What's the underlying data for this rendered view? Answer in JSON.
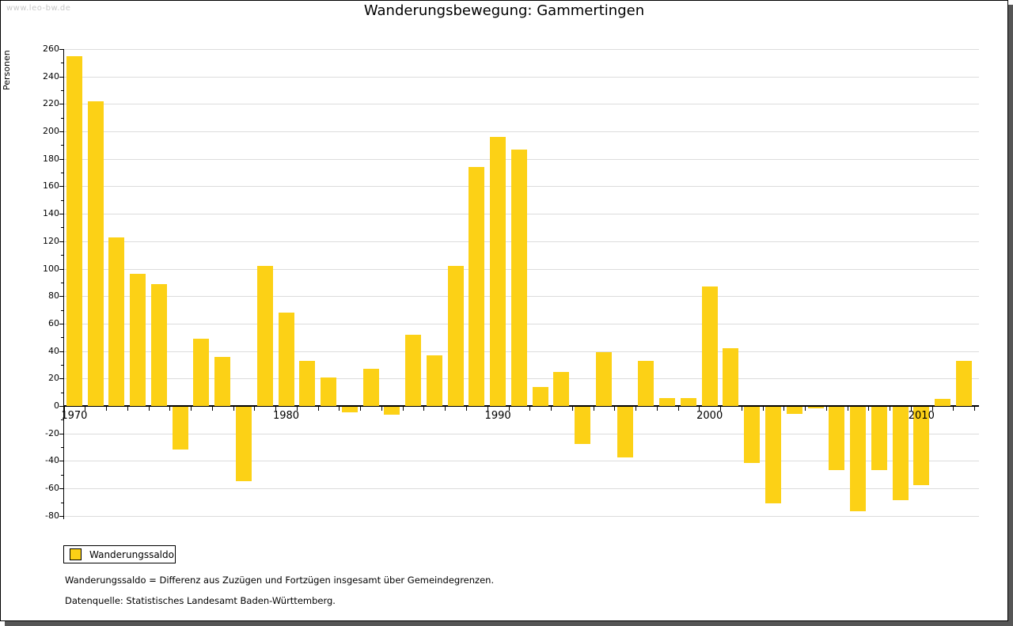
{
  "watermark": "www.leo-bw.de",
  "header": {
    "title": "Wanderungsbewegung: Gammertingen"
  },
  "legend": {
    "label": "Wanderungssaldo"
  },
  "footnotes": {
    "line1": "Wanderungssaldo = Differenz aus Zuzügen und Fortzügen insgesamt über Gemeindegrenzen.",
    "line2": "Datenquelle: Statistisches Landesamt Baden-Württemberg."
  },
  "colors": {
    "bar": "#FCD116",
    "grid": "#dcdcdc",
    "axis": "#000000",
    "watermark": "#c8c8c8",
    "shadow": "#565656"
  },
  "chart_data": {
    "type": "bar",
    "title": "Wanderungsbewegung: Gammertingen",
    "xlabel": "",
    "ylabel": "Personen",
    "series_name": "Wanderungssaldo",
    "years": [
      1970,
      1971,
      1972,
      1973,
      1974,
      1975,
      1976,
      1977,
      1978,
      1979,
      1980,
      1981,
      1982,
      1983,
      1984,
      1985,
      1986,
      1987,
      1988,
      1989,
      1990,
      1991,
      1992,
      1993,
      1994,
      1995,
      1996,
      1997,
      1998,
      1999,
      2000,
      2001,
      2002,
      2003,
      2004,
      2005,
      2006,
      2007,
      2008,
      2009,
      2010,
      2011,
      2012
    ],
    "values": [
      255,
      222,
      123,
      96,
      89,
      -31,
      49,
      36,
      -54,
      102,
      68,
      33,
      21,
      -4,
      27,
      -6,
      52,
      37,
      102,
      174,
      196,
      187,
      14,
      25,
      -27,
      39,
      -37,
      33,
      6,
      6,
      87,
      42,
      -41,
      -70,
      -5,
      -1,
      -46,
      -76,
      -46,
      -68,
      -57,
      5,
      33
    ],
    "ylim": [
      -80,
      260
    ],
    "ytick_step": 20,
    "ytick_minor_step": 10,
    "xtick_labels": [
      "1970",
      "1980",
      "1990",
      "2000",
      "2010"
    ],
    "grid": true,
    "legend_position": "bottom-left"
  }
}
